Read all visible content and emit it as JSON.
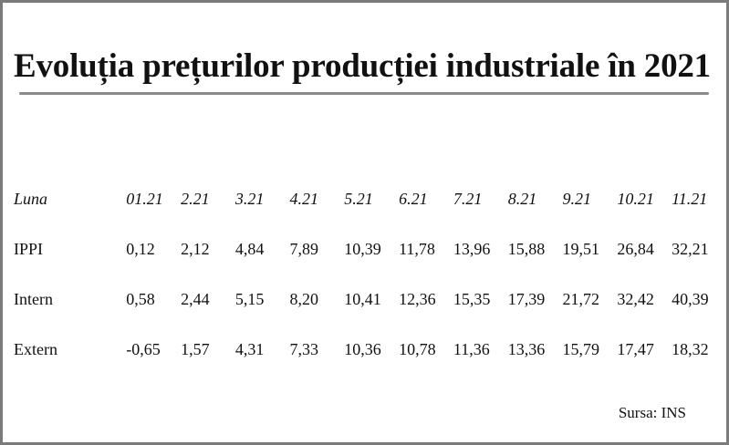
{
  "title": "Evoluția prețurilor producției industriale în 2021",
  "table": {
    "header_label": "Luna",
    "months": [
      "01.21",
      "2.21",
      "3.21",
      "4.21",
      "5.21",
      "6.21",
      "7.21",
      "8.21",
      "9.21",
      "10.21",
      "11.21"
    ],
    "rows": [
      {
        "label": "IPPI",
        "values": [
          "0,12",
          "2,12",
          "4,84",
          "7,89",
          "10,39",
          "11,78",
          "13,96",
          "15,88",
          "19,51",
          "26,84",
          "32,21"
        ]
      },
      {
        "label": "Intern",
        "values": [
          "0,58",
          "2,44",
          "5,15",
          "8,20",
          "10,41",
          "12,36",
          "15,35",
          "17,39",
          "21,72",
          "32,42",
          "40,39"
        ]
      },
      {
        "label": "Extern",
        "values": [
          "-0,65",
          "1,57",
          "4,31",
          "7,33",
          "10,36",
          "10,78",
          "11,36",
          "13,36",
          "15,79",
          "17,47",
          "18,32"
        ]
      }
    ]
  },
  "source": "Sursa: INS"
}
